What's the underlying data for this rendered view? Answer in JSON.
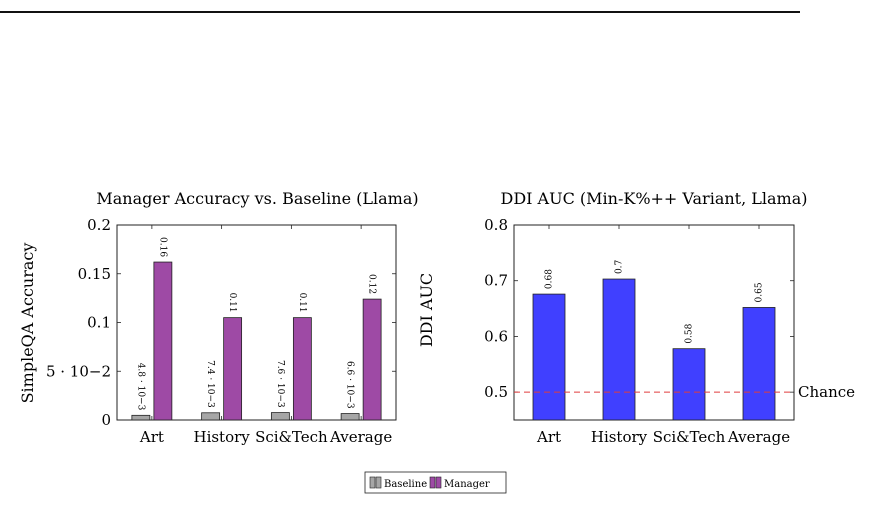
{
  "chart_data": [
    {
      "type": "bar",
      "title": "Manager Accuracy vs. Baseline (Llama)",
      "xlabel": "",
      "ylabel": "SimpleQA Accuracy",
      "categories": [
        "Art",
        "History",
        "Sci&Tech",
        "Average"
      ],
      "ylim": [
        0,
        0.2
      ],
      "yticks": [
        0,
        0.05,
        0.1,
        0.15,
        0.2
      ],
      "ytick_labels": [
        "0",
        "5 · 10−2",
        "0.1",
        "0.15",
        "0.2"
      ],
      "series": [
        {
          "name": "Baseline",
          "color": "#a6a6a6",
          "values": [
            0.0048,
            0.0074,
            0.0076,
            0.0066
          ],
          "data_labels": [
            "4.8 · 10−3",
            "7.4 · 10−3",
            "7.6 · 10−3",
            "6.6 · 10−3"
          ]
        },
        {
          "name": "Manager",
          "color": "#9e4aa5",
          "values": [
            0.162,
            0.105,
            0.105,
            0.124
          ],
          "data_labels": [
            "0.16",
            "0.11",
            "0.11",
            "0.12"
          ]
        }
      ],
      "legend": "bottom-center",
      "grid": false
    },
    {
      "type": "bar",
      "title": "DDI AUC (Min-K%++ Variant, Llama)",
      "xlabel": "",
      "ylabel": "DDI AUC",
      "categories": [
        "Art",
        "History",
        "Sci&Tech",
        "Average"
      ],
      "ylim": [
        0.45,
        0.8
      ],
      "yticks": [
        0.5,
        0.6,
        0.7,
        0.8
      ],
      "ytick_labels": [
        "0.5",
        "0.6",
        "0.7",
        "0.8"
      ],
      "series": [
        {
          "name": "",
          "color": "#4040ff",
          "values": [
            0.676,
            0.703,
            0.578,
            0.652
          ],
          "data_labels": [
            "0.68",
            "0.7",
            "0.58",
            "0.65"
          ]
        }
      ],
      "reference_line": {
        "value": 0.5,
        "label": "Chance",
        "color": "#e03c3c",
        "style": "dashed"
      },
      "grid": false
    }
  ]
}
